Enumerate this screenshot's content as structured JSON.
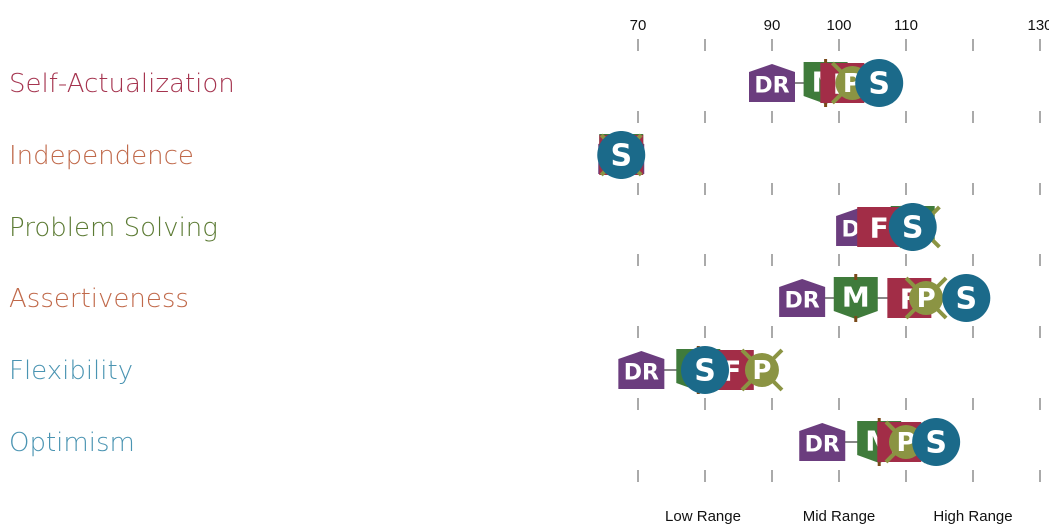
{
  "chart_data": {
    "type": "scatter",
    "axis": {
      "ticks": [
        70,
        80,
        90,
        100,
        110,
        120,
        130
      ],
      "tick_labels": [
        "70",
        "",
        "90",
        "100",
        "110",
        "",
        "130"
      ],
      "range_labels": [
        "Low Range",
        "Mid Range",
        "High Range"
      ]
    },
    "markers": {
      "DR": {
        "label": "DR",
        "color": "#6b3d7e"
      },
      "M": {
        "label": "M",
        "color": "#3f7b3b"
      },
      "F": {
        "label": "F",
        "color": "#a22d47"
      },
      "P": {
        "label": "P",
        "color": "#8b9443"
      },
      "S": {
        "label": "S",
        "color": "#1b6a8a"
      }
    },
    "rows": [
      {
        "label": "Self-Actualization",
        "color": "#a5344f",
        "points": {
          "DR": 90,
          "M": 98,
          "F": 100.5,
          "P": 102,
          "S": 106
        }
      },
      {
        "label": "Independence",
        "color": "#c0694a",
        "points": {
          "DR": 67.5,
          "M": 67.5,
          "F": 67.5,
          "P": 67.5,
          "S": 67.5
        }
      },
      {
        "label": "Problem Solving",
        "color": "#5b7a33",
        "points": {
          "DR": 103,
          "M": 111,
          "F": 106,
          "P": 112,
          "S": 111
        }
      },
      {
        "label": "Assertiveness",
        "color": "#c0694a",
        "points": {
          "DR": 94.5,
          "M": 102.5,
          "F": 110.5,
          "P": 113,
          "S": 119
        }
      },
      {
        "label": "Flexibility",
        "color": "#4a94b2",
        "points": {
          "DR": 70.5,
          "M": 79,
          "F": 84,
          "P": 88.5,
          "S": 80
        }
      },
      {
        "label": "Optimism",
        "color": "#4a94b2",
        "points": {
          "DR": 97.5,
          "M": 106,
          "F": 109,
          "P": 110,
          "S": 114.5
        }
      }
    ]
  }
}
